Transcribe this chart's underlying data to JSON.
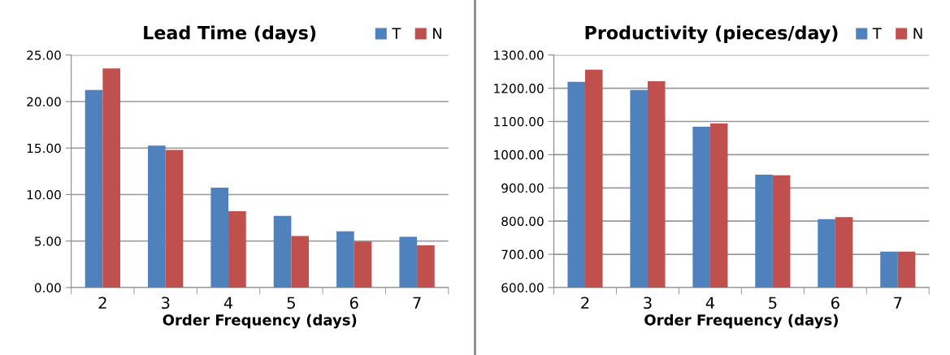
{
  "chart_data": [
    {
      "type": "bar",
      "title": "Lead Time (days)",
      "xlabel": "Order Frequency (days)",
      "categories": [
        "2",
        "3",
        "4",
        "5",
        "6",
        "7"
      ],
      "series": [
        {
          "name": "T",
          "color": "#4f81bd",
          "values": [
            21.25,
            15.25,
            10.75,
            7.7,
            6.05,
            5.45
          ]
        },
        {
          "name": "N",
          "color": "#c0504d",
          "values": [
            23.55,
            14.8,
            8.2,
            5.55,
            4.95,
            4.55
          ]
        }
      ],
      "ylim": [
        0,
        25
      ],
      "yticks": [
        {
          "value": 0,
          "label": "0.00"
        },
        {
          "value": 5,
          "label": "5.00"
        },
        {
          "value": 10,
          "label": "10.00"
        },
        {
          "value": 15,
          "label": "15.00"
        },
        {
          "value": 20,
          "label": "20.00"
        },
        {
          "value": 25,
          "label": "25.00"
        }
      ],
      "grid": "y",
      "legend": "top right"
    },
    {
      "type": "bar",
      "title": "Productivity (pieces/day)",
      "xlabel": "Order Frequency (days)",
      "categories": [
        "2",
        "3",
        "4",
        "5",
        "6",
        "7"
      ],
      "series": [
        {
          "name": "T",
          "color": "#4f81bd",
          "values": [
            1219,
            1195,
            1084,
            940,
            806,
            708
          ]
        },
        {
          "name": "N",
          "color": "#c0504d",
          "values": [
            1256,
            1221,
            1094,
            938,
            812,
            708
          ]
        }
      ],
      "ylim": [
        600,
        1300
      ],
      "yticks": [
        {
          "value": 600,
          "label": "600.00"
        },
        {
          "value": 700,
          "label": "700.00"
        },
        {
          "value": 800,
          "label": "800.00"
        },
        {
          "value": 900,
          "label": "900.00"
        },
        {
          "value": 1000,
          "label": "1000.00"
        },
        {
          "value": 1100,
          "label": "1100.00"
        },
        {
          "value": 1200,
          "label": "1200.00"
        },
        {
          "value": 1300,
          "label": "1300.00"
        }
      ],
      "grid": "y",
      "legend": "top right"
    }
  ]
}
